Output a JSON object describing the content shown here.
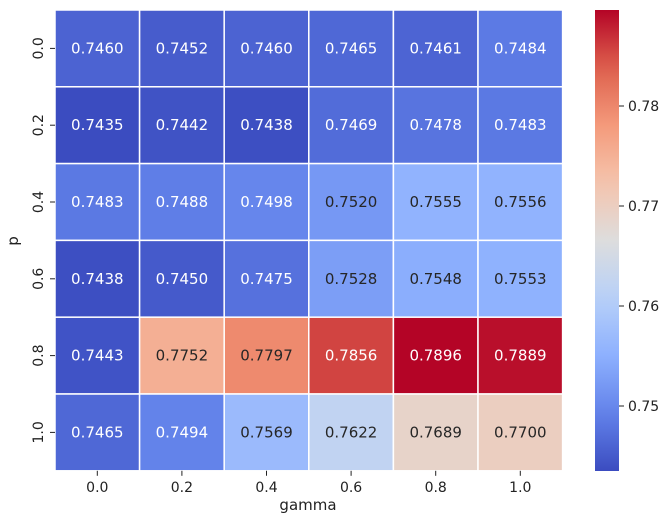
{
  "chart_data": {
    "type": "heatmap",
    "title": "",
    "xlabel": "gamma",
    "ylabel": "p",
    "x_categories": [
      "0.0",
      "0.2",
      "0.4",
      "0.6",
      "0.8",
      "1.0"
    ],
    "y_categories": [
      "0.0",
      "0.2",
      "0.4",
      "0.6",
      "0.8",
      "1.0"
    ],
    "values": [
      [
        "0.7460",
        "0.7452",
        "0.7460",
        "0.7465",
        "0.7461",
        "0.7484"
      ],
      [
        "0.7435",
        "0.7442",
        "0.7438",
        "0.7469",
        "0.7478",
        "0.7483"
      ],
      [
        "0.7483",
        "0.7488",
        "0.7498",
        "0.7520",
        "0.7555",
        "0.7556"
      ],
      [
        "0.7438",
        "0.7450",
        "0.7475",
        "0.7528",
        "0.7548",
        "0.7553"
      ],
      [
        "0.7443",
        "0.7752",
        "0.7797",
        "0.7856",
        "0.7896",
        "0.7889"
      ],
      [
        "0.7465",
        "0.7494",
        "0.7569",
        "0.7622",
        "0.7689",
        "0.7700"
      ]
    ],
    "colormap": "coolwarm",
    "vmin": 0.7435,
    "vmax": 0.7896,
    "colorbar_ticks": [
      "0.75",
      "0.76",
      "0.77",
      "0.78"
    ]
  }
}
